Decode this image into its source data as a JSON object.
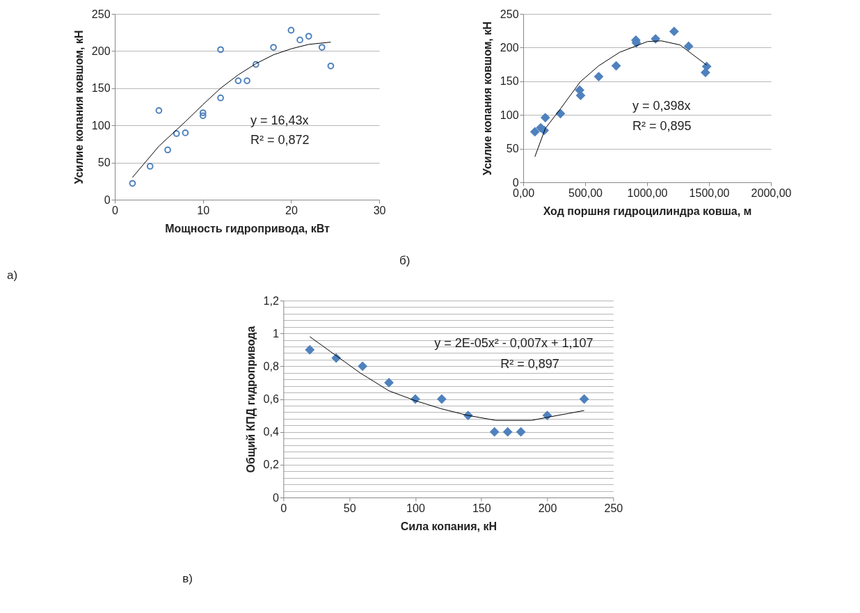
{
  "chart_data": [
    {
      "type": "scatter",
      "xlabel": "Мощность гидропривода,  кВт",
      "ylabel": "Усилие копания ковшом, кН",
      "xlim": [
        0,
        30
      ],
      "xticks": [
        0,
        10,
        20,
        30
      ],
      "ylim": [
        0,
        250
      ],
      "yticks": [
        0,
        50,
        100,
        150,
        200,
        250
      ],
      "grid": "y",
      "series": [
        {
          "type": "scatter",
          "marker": "circle",
          "color": "#4f81bd",
          "x": [
            2,
            4,
            5,
            6,
            7,
            8,
            10,
            10,
            12,
            12,
            14,
            15,
            16,
            18,
            20,
            21,
            22,
            23.5,
            24.5
          ],
          "values": [
            22,
            45,
            120,
            67,
            89,
            90,
            117,
            113,
            137,
            202,
            160,
            160,
            182,
            205,
            228,
            215,
            220,
            205,
            180
          ]
        },
        {
          "type": "line",
          "color": "#000000",
          "x": [
            2,
            5,
            8,
            10,
            12,
            14,
            16,
            18,
            20,
            22,
            24.5
          ],
          "values": [
            30,
            72,
            105,
            128,
            150,
            168,
            183,
            195,
            203,
            209,
            212
          ]
        }
      ],
      "annotations": [
        "y = 16,43x",
        "R² = 0,872",
        "а)"
      ]
    },
    {
      "type": "scatter",
      "xlabel": "Ход поршня гидроцилиндра ковша, м",
      "ylabel": "Усилие копания ковшом, кН",
      "xlim": [
        0,
        2000
      ],
      "xticks": [
        {
          "value": 0,
          "label": "0,00"
        },
        {
          "value": 500,
          "label": "500,00"
        },
        {
          "value": 1000,
          "label": "1000,00"
        },
        {
          "value": 1500,
          "label": "1500,00"
        },
        {
          "value": 2000,
          "label": "2000,00"
        }
      ],
      "ylim": [
        0,
        250
      ],
      "yticks": [
        0,
        50,
        100,
        150,
        200,
        250
      ],
      "grid": "y",
      "series": [
        {
          "type": "scatter",
          "marker": "diamond",
          "color": "#4f81bd",
          "x": [
            94,
            141,
            169,
            178,
            300,
            455,
            463,
            609,
            750,
            909,
            913,
            1068,
            1218,
            1335,
            1481,
            1471
          ],
          "values": [
            75,
            81,
            77,
            96,
            102,
            137,
            129,
            157,
            173,
            211,
            207,
            213,
            224,
            202,
            172,
            163
          ]
        },
        {
          "type": "line",
          "color": "#000000",
          "x": [
            94,
            178,
            300,
            459,
            609,
            778,
            1003,
            1115,
            1265,
            1481
          ],
          "values": [
            38,
            80,
            109,
            149,
            173,
            193,
            209,
            210,
            204,
            174
          ]
        }
      ],
      "annotations": [
        "y = 0,398x",
        "R² = 0,895",
        "б)"
      ]
    },
    {
      "type": "scatter",
      "xlabel": "Сила копания,  кН",
      "ylabel": "Общий КПД гидропривода",
      "xlim": [
        0,
        250
      ],
      "xticks": [
        0,
        50,
        100,
        150,
        200,
        250
      ],
      "ylim": [
        0,
        1.2
      ],
      "yticks": [
        0,
        {
          "value": 0.04,
          "label": null
        },
        {
          "value": 0.08,
          "label": null
        },
        {
          "value": 0.12,
          "label": null
        },
        {
          "value": 0.16,
          "label": null
        },
        {
          "value": 0.2,
          "label": "0,2"
        },
        {
          "value": 0.24,
          "label": null
        },
        {
          "value": 0.28,
          "label": null
        },
        {
          "value": 0.32,
          "label": null
        },
        {
          "value": 0.36,
          "label": null
        },
        {
          "value": 0.4,
          "label": "0,4"
        },
        {
          "value": 0.44,
          "label": null
        },
        {
          "value": 0.48,
          "label": null
        },
        {
          "value": 0.52,
          "label": null
        },
        {
          "value": 0.56,
          "label": null
        },
        {
          "value": 0.6,
          "label": "0,6"
        },
        {
          "value": 0.64,
          "label": null
        },
        {
          "value": 0.68,
          "label": null
        },
        {
          "value": 0.72,
          "label": null
        },
        {
          "value": 0.76,
          "label": null
        },
        {
          "value": 0.8,
          "label": "0,8"
        },
        {
          "value": 0.84,
          "label": null
        },
        {
          "value": 0.88,
          "label": null
        },
        {
          "value": 0.92,
          "label": null
        },
        {
          "value": 0.96,
          "label": null
        },
        1,
        {
          "value": 1.04,
          "label": null
        },
        {
          "value": 1.08,
          "label": null
        },
        {
          "value": 1.12,
          "label": null
        },
        {
          "value": 1.16,
          "label": null
        },
        {
          "value": 1.2,
          "label": "1,2"
        }
      ],
      "grid": "y",
      "series": [
        {
          "type": "scatter",
          "marker": "diamond",
          "color": "#4f81bd",
          "x": [
            20,
            40,
            60,
            80,
            100,
            120,
            140,
            160,
            170,
            180,
            200,
            228
          ],
          "values": [
            0.9,
            0.85,
            0.8,
            0.7,
            0.6,
            0.6,
            0.5,
            0.4,
            0.4,
            0.4,
            0.5,
            0.6
          ]
        },
        {
          "type": "line",
          "color": "#000000",
          "x": [
            20,
            58,
            80,
            100,
            120,
            140,
            161,
            188,
            201,
            228
          ],
          "values": [
            0.98,
            0.76,
            0.65,
            0.59,
            0.54,
            0.5,
            0.47,
            0.47,
            0.49,
            0.53
          ]
        }
      ],
      "annotations": [
        "y = 2E-05x² - 0,007x + 1,107",
        "R² = 0,897",
        "в)"
      ]
    }
  ]
}
